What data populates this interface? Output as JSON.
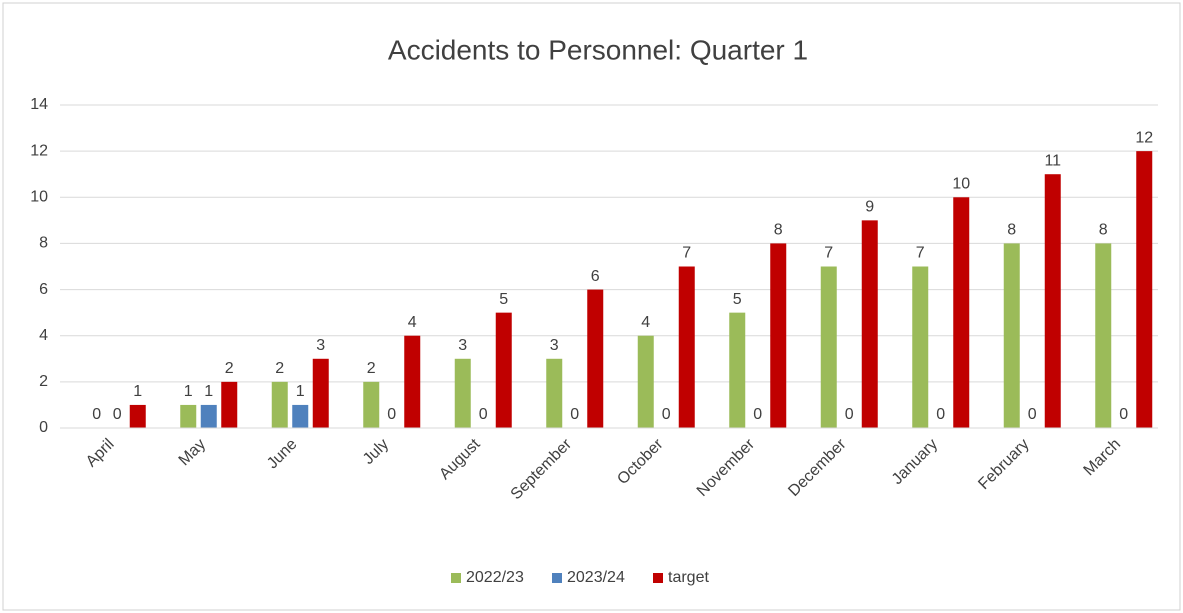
{
  "chart_data": {
    "type": "bar",
    "title": "Accidents to Personnel: Quarter 1",
    "categories": [
      "April",
      "May",
      "June",
      "July",
      "August",
      "September",
      "October",
      "November",
      "December",
      "January",
      "February",
      "March"
    ],
    "series": [
      {
        "name": "2022/23",
        "color": "#9bbb59",
        "values": [
          0,
          1,
          2,
          2,
          3,
          3,
          4,
          5,
          7,
          7,
          8,
          8
        ]
      },
      {
        "name": "2023/24",
        "color": "#4f81bd",
        "values": [
          0,
          1,
          1,
          0,
          0,
          0,
          0,
          0,
          0,
          0,
          0,
          0
        ]
      },
      {
        "name": "target",
        "color": "#c00000",
        "values": [
          1,
          2,
          3,
          4,
          5,
          6,
          7,
          8,
          9,
          10,
          11,
          12
        ]
      }
    ],
    "ylim": [
      0,
      14
    ],
    "yticks": [
      0,
      2,
      4,
      6,
      8,
      10,
      12,
      14
    ],
    "grid": true,
    "legend": "bottom"
  }
}
